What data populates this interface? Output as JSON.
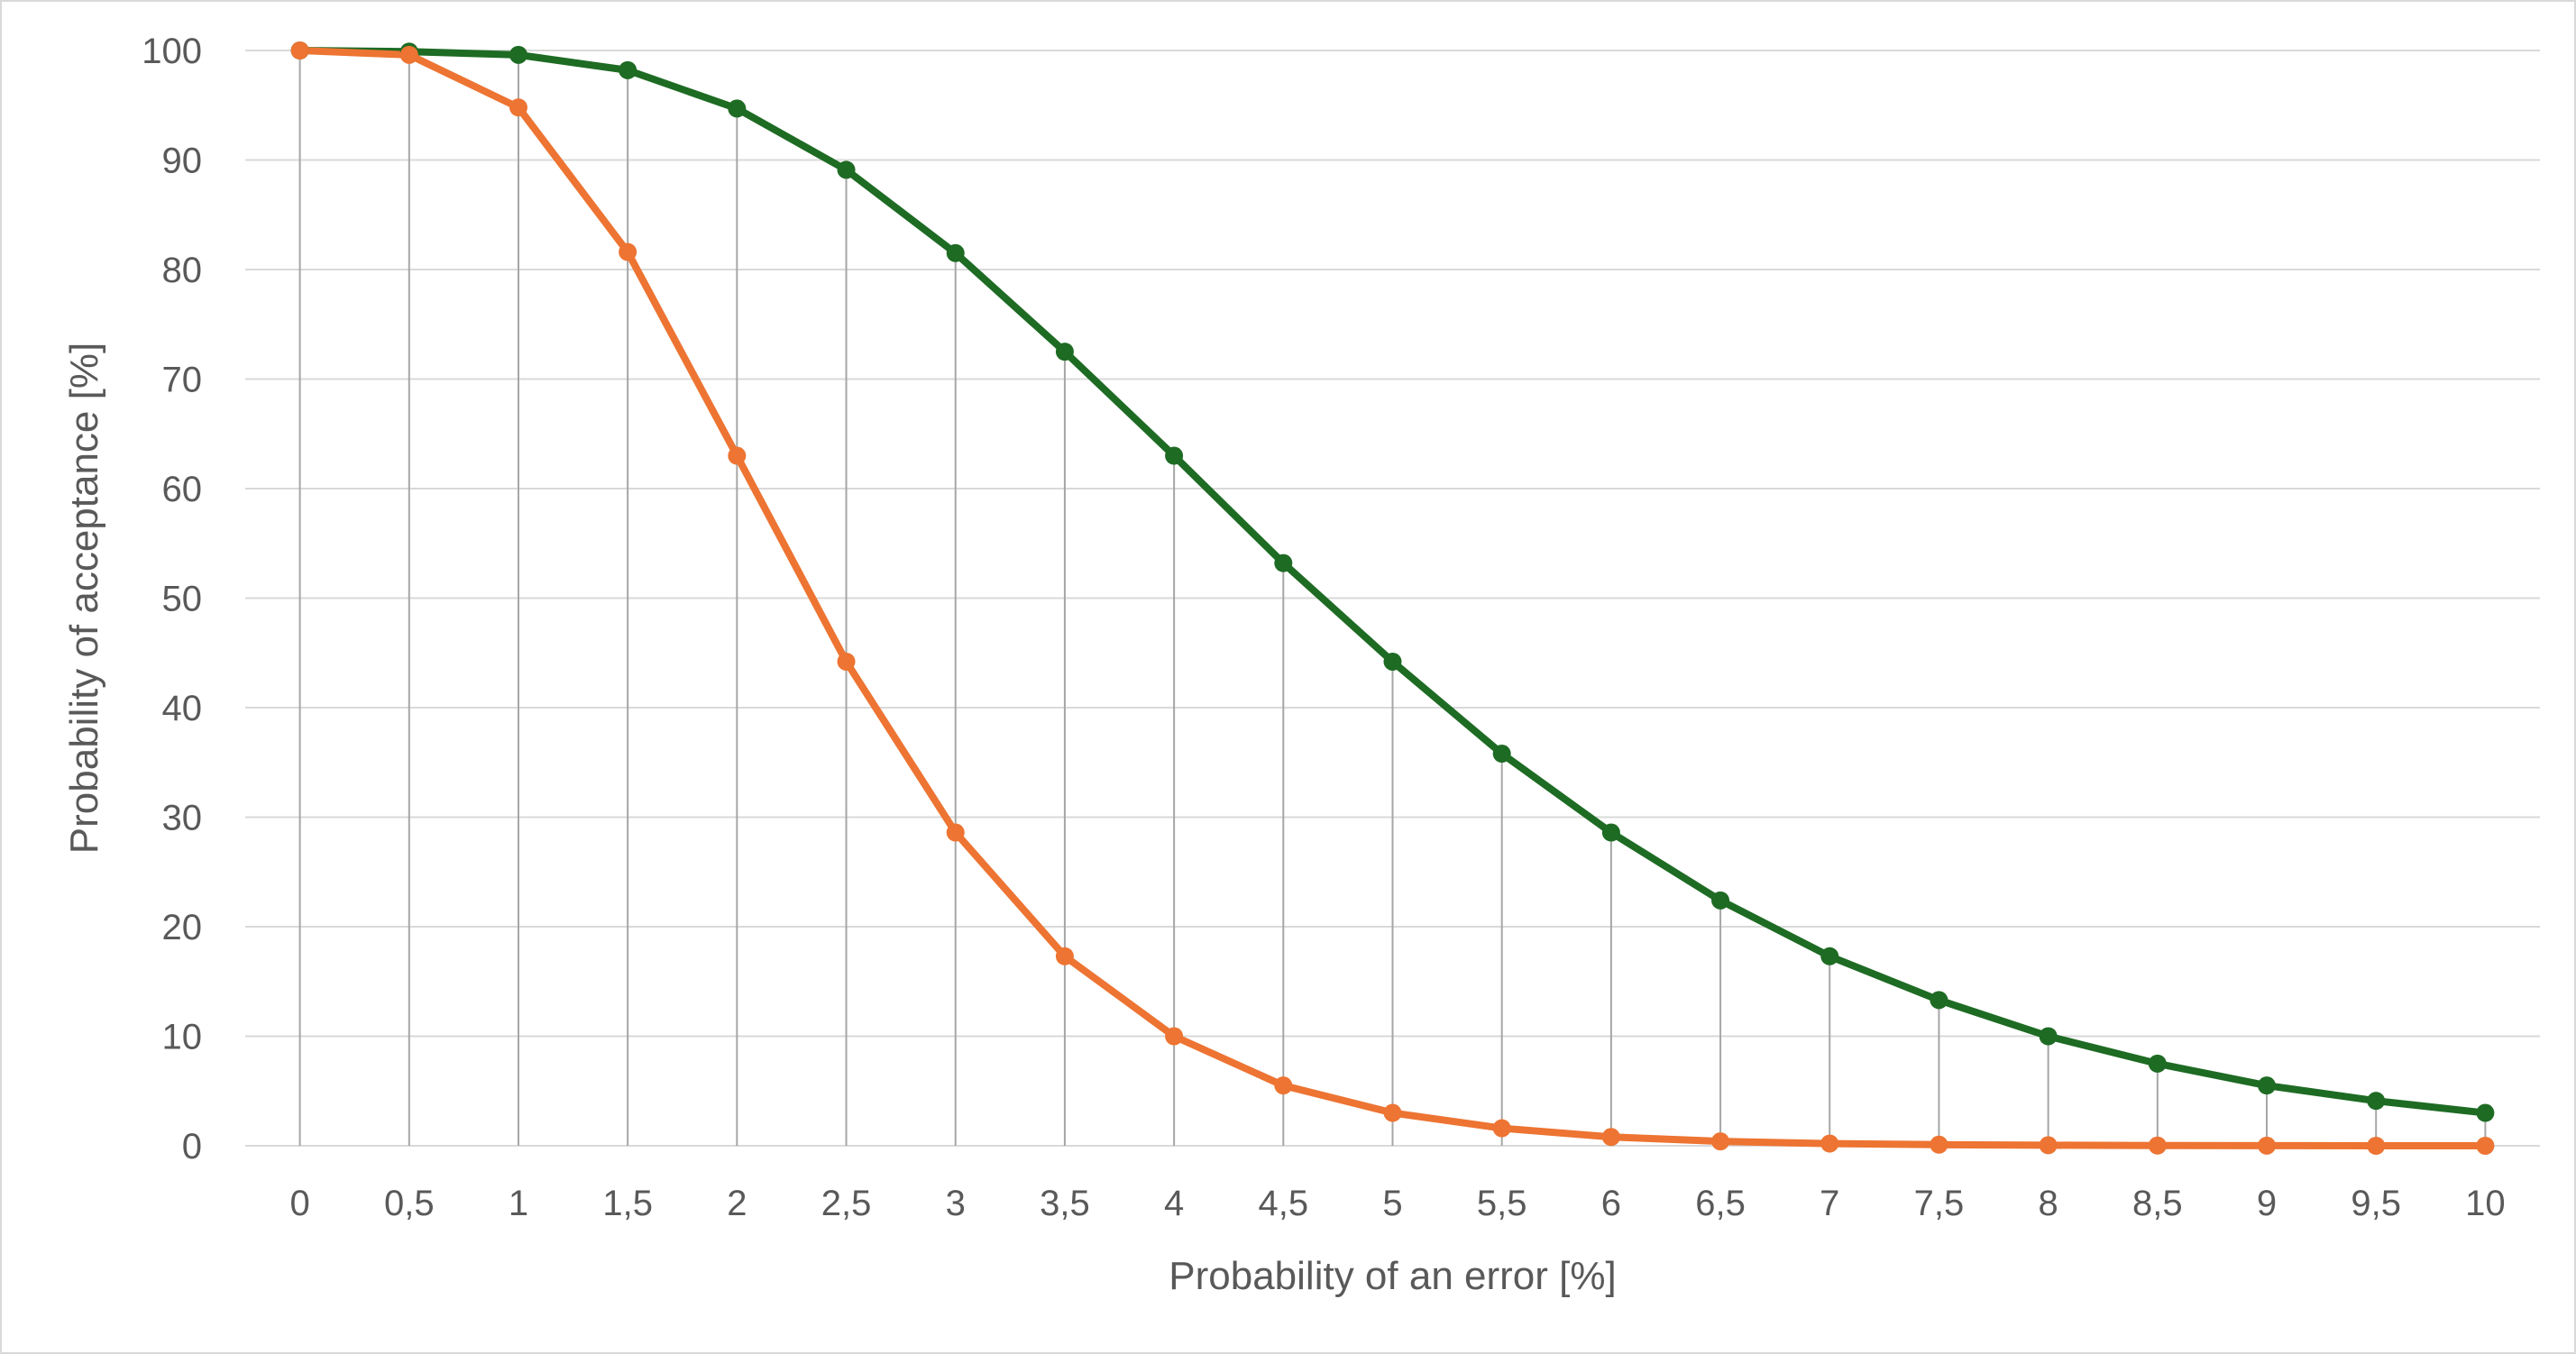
{
  "chart_data": {
    "type": "line",
    "xlabel": "Probability of an error [%]",
    "ylabel": "Probability of acceptance [%]",
    "ylim": [
      0,
      100
    ],
    "y_ticks": [
      "0",
      "10",
      "20",
      "30",
      "40",
      "50",
      "60",
      "70",
      "80",
      "90",
      "100"
    ],
    "y_tick_values": [
      0,
      10,
      20,
      30,
      40,
      50,
      60,
      70,
      80,
      90,
      100
    ],
    "categories": [
      "0",
      "0,5",
      "1",
      "1,5",
      "2",
      "2,5",
      "3",
      "3,5",
      "4",
      "4,5",
      "5",
      "5,5",
      "6",
      "6,5",
      "7",
      "7,5",
      "8",
      "8,5",
      "9",
      "9,5",
      "10"
    ],
    "grid": "horizontal",
    "legend": "none",
    "drop_lines": true,
    "series": [
      {
        "color": "#1e6b24",
        "values": [
          100,
          99.9,
          99.6,
          98.2,
          94.7,
          89.1,
          81.5,
          72.5,
          63.0,
          53.2,
          44.2,
          35.8,
          28.6,
          22.4,
          17.3,
          13.3,
          10.0,
          7.5,
          5.5,
          4.1,
          3.0
        ]
      },
      {
        "color": "#ed7432",
        "values": [
          100,
          99.6,
          94.8,
          81.6,
          63.0,
          44.2,
          28.6,
          17.3,
          10.0,
          5.5,
          3.0,
          1.6,
          0.8,
          0.4,
          0.2,
          0.1,
          0.05,
          0.02,
          0.01,
          0.0,
          0.0
        ]
      }
    ],
    "colors": {
      "gridline": "#d9d9d9",
      "drop_line": "#a6a6a6",
      "text": "#595959"
    }
  }
}
